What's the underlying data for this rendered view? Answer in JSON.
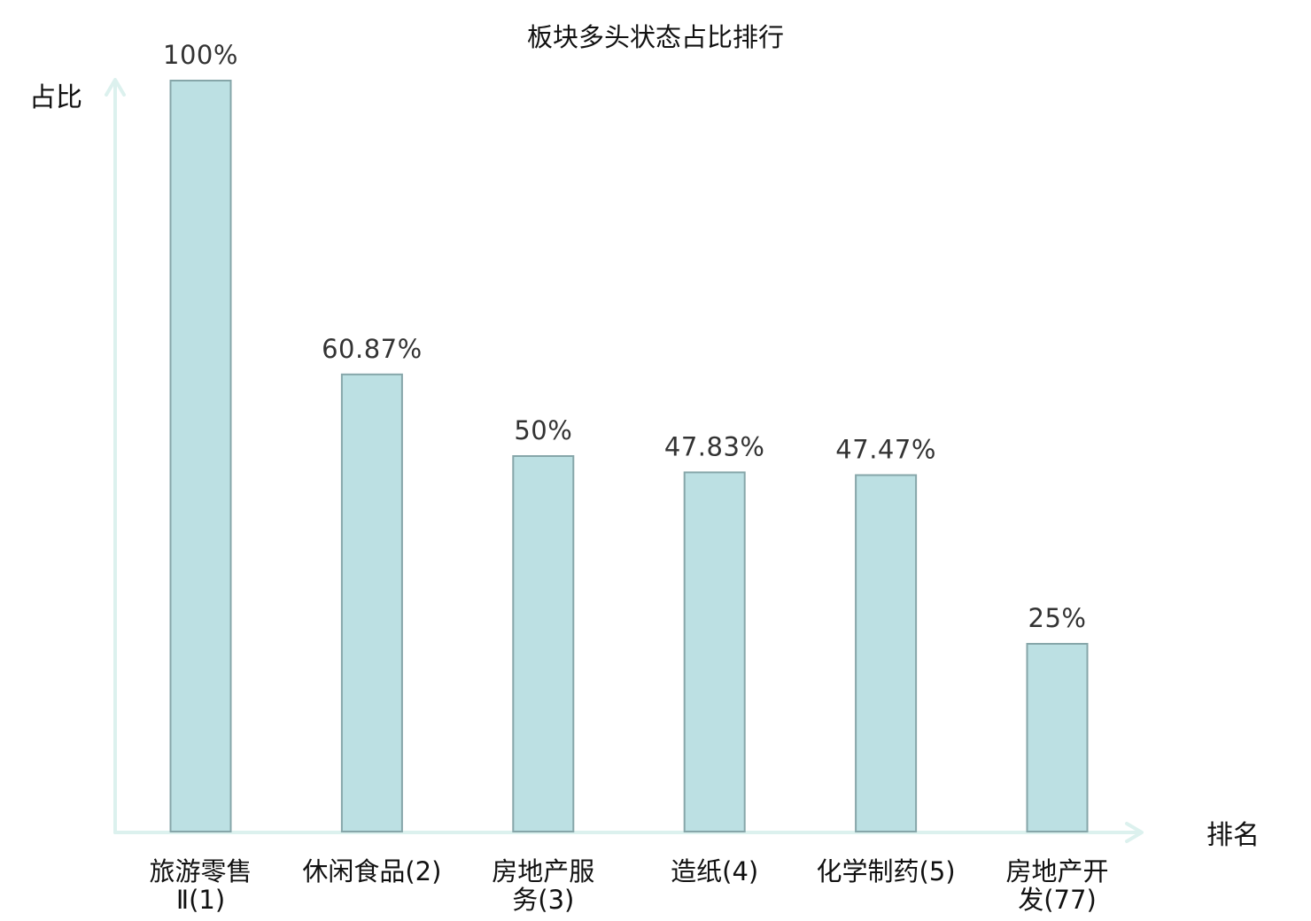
{
  "chart_data": {
    "type": "bar",
    "title": "板块多头状态占比排行",
    "ylabel": "占比",
    "xlabel": "排名",
    "ylim": [
      0,
      100
    ],
    "grid": false,
    "legend": "none",
    "categories": [
      {
        "lines": [
          "旅游零售",
          "Ⅱ(1)"
        ],
        "name": "旅游零售Ⅱ",
        "rank": "(1)",
        "value": 100,
        "label": "100%",
        "highlight": false
      },
      {
        "lines": [
          "休闲食品(2)"
        ],
        "name": "休闲食品",
        "rank": "(2)",
        "value": 60.87,
        "label": "60.87%",
        "highlight": false
      },
      {
        "lines": [
          "房地产服",
          "务(3)"
        ],
        "name": "房地产服务",
        "rank": "(3)",
        "value": 50,
        "label": "50%",
        "highlight": false
      },
      {
        "lines": [
          "造纸(4)"
        ],
        "name": "造纸",
        "rank": "(4)",
        "value": 47.83,
        "label": "47.83%",
        "highlight": false
      },
      {
        "lines": [
          "化学制药(5)"
        ],
        "name": "化学制药",
        "rank": "(5)",
        "value": 47.47,
        "label": "47.47%",
        "highlight": false
      },
      {
        "lines": [
          "房地产开",
          "发(77)"
        ],
        "name": "房地产开发",
        "rank": "(77)",
        "value": 25,
        "label": "25%",
        "highlight": true
      }
    ],
    "colors": {
      "bar_fill": "#bce0e3",
      "bar_stroke": "#86a6a9",
      "axis": "#dcf1ee",
      "highlight_text": "#e60000",
      "normal_text": "#111111"
    }
  }
}
